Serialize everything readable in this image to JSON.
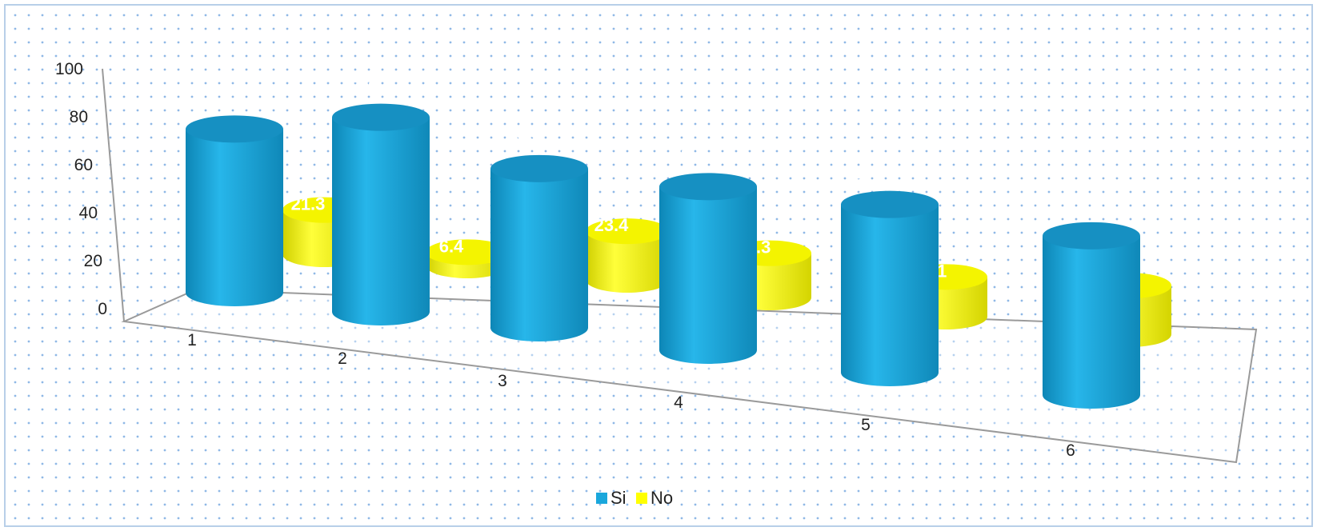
{
  "chart_data": {
    "type": "bar",
    "style": "3d-cylinder",
    "categories": [
      "1",
      "2",
      "3",
      "4",
      "5",
      "6"
    ],
    "series": [
      {
        "name": "Si",
        "color": "#1aa7dc",
        "values": [
          78.7,
          93.6,
          76.6,
          78.7,
          80.9,
          76.6
        ]
      },
      {
        "name": "No",
        "color": "#ffff00",
        "values": [
          21.3,
          6.4,
          23.4,
          21.3,
          19.1,
          23.4
        ]
      }
    ],
    "y_ticks": [
      "0",
      "20",
      "40",
      "60",
      "80",
      "100"
    ],
    "ylim": [
      0,
      100
    ],
    "data_labels": true,
    "data_label_color": "#ff0000",
    "legend_position": "bottom",
    "background": "dotted",
    "grid": false
  }
}
